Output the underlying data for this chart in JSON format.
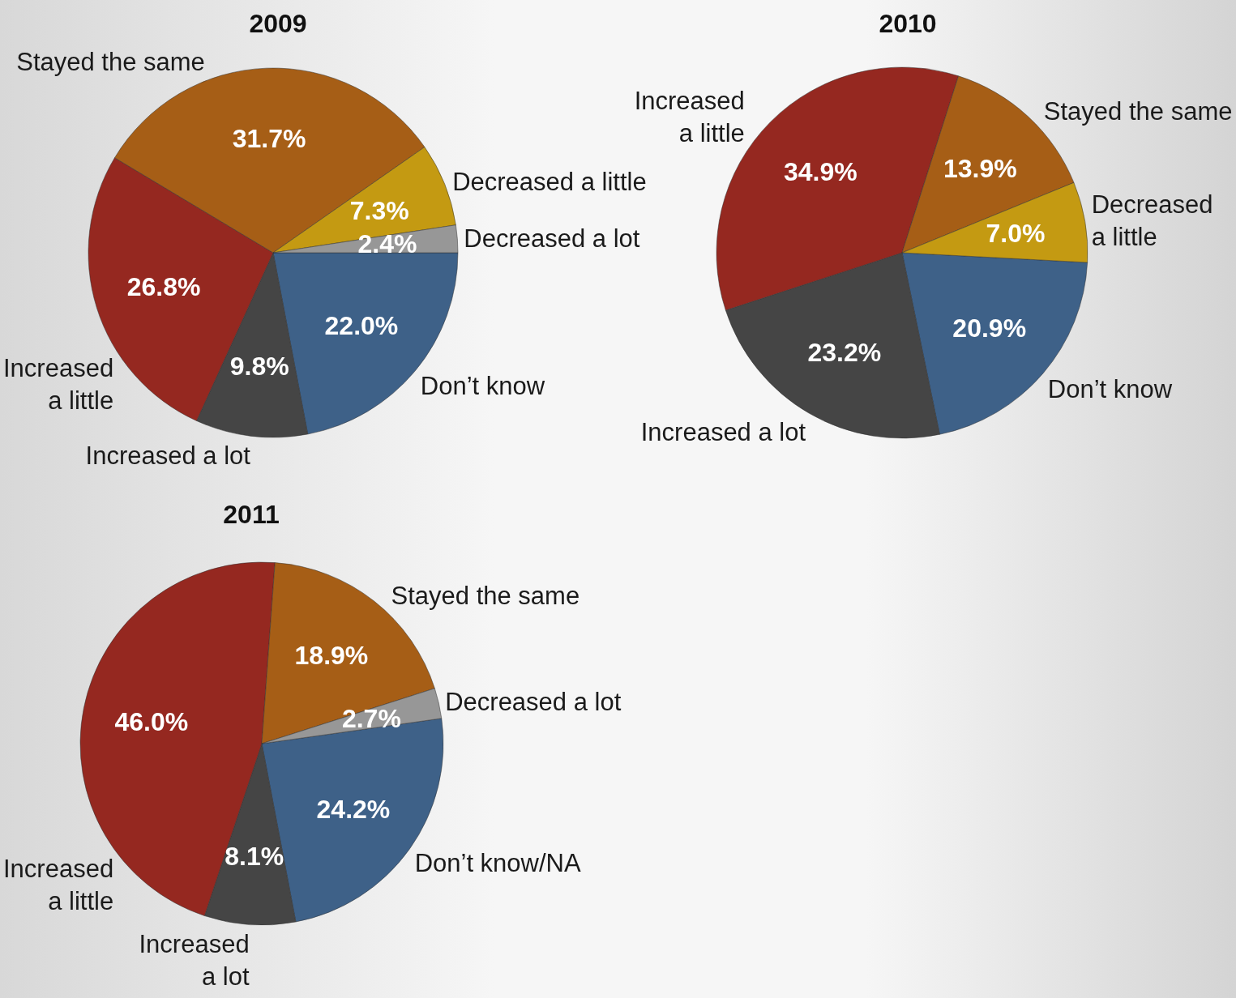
{
  "chart_data": [
    {
      "type": "pie",
      "title": "2009",
      "categories": [
        "Don’t know",
        "Increased a lot",
        "Increased\na little",
        "Stayed the same",
        "Decreased a little",
        "Decreased a lot"
      ],
      "values": [
        22.0,
        9.8,
        26.8,
        31.7,
        7.3,
        2.4
      ],
      "value_labels": [
        "22.0%",
        "9.8%",
        "26.8%",
        "31.7%",
        "7.3%",
        "2.4%"
      ],
      "colors": [
        "#3e6188",
        "#454545",
        "#952820",
        "#a65e16",
        "#c49a12",
        "#979797"
      ]
    },
    {
      "type": "pie",
      "title": "2010",
      "categories": [
        "Don’t know",
        "Increased a lot",
        "Increased\na little",
        "Stayed the same",
        "Decreased\na little"
      ],
      "values": [
        20.9,
        23.2,
        34.9,
        13.9,
        7.0
      ],
      "value_labels": [
        "20.9%",
        "23.2%",
        "34.9%",
        "13.9%",
        "7.0%"
      ],
      "colors": [
        "#3e6188",
        "#454545",
        "#952820",
        "#a65e16",
        "#c49a12"
      ]
    },
    {
      "type": "pie",
      "title": "2011",
      "categories": [
        "Don’t know/NA",
        "Increased\na lot",
        "Increased\na little",
        "Stayed the same",
        "Decreased a lot"
      ],
      "values": [
        24.2,
        8.1,
        46.0,
        18.9,
        2.7
      ],
      "value_labels": [
        "24.2%",
        "8.1%",
        "46.0%",
        "18.9%",
        "2.7%"
      ],
      "colors": [
        "#3e6188",
        "#454545",
        "#952820",
        "#a65e16",
        "#979797"
      ]
    }
  ]
}
